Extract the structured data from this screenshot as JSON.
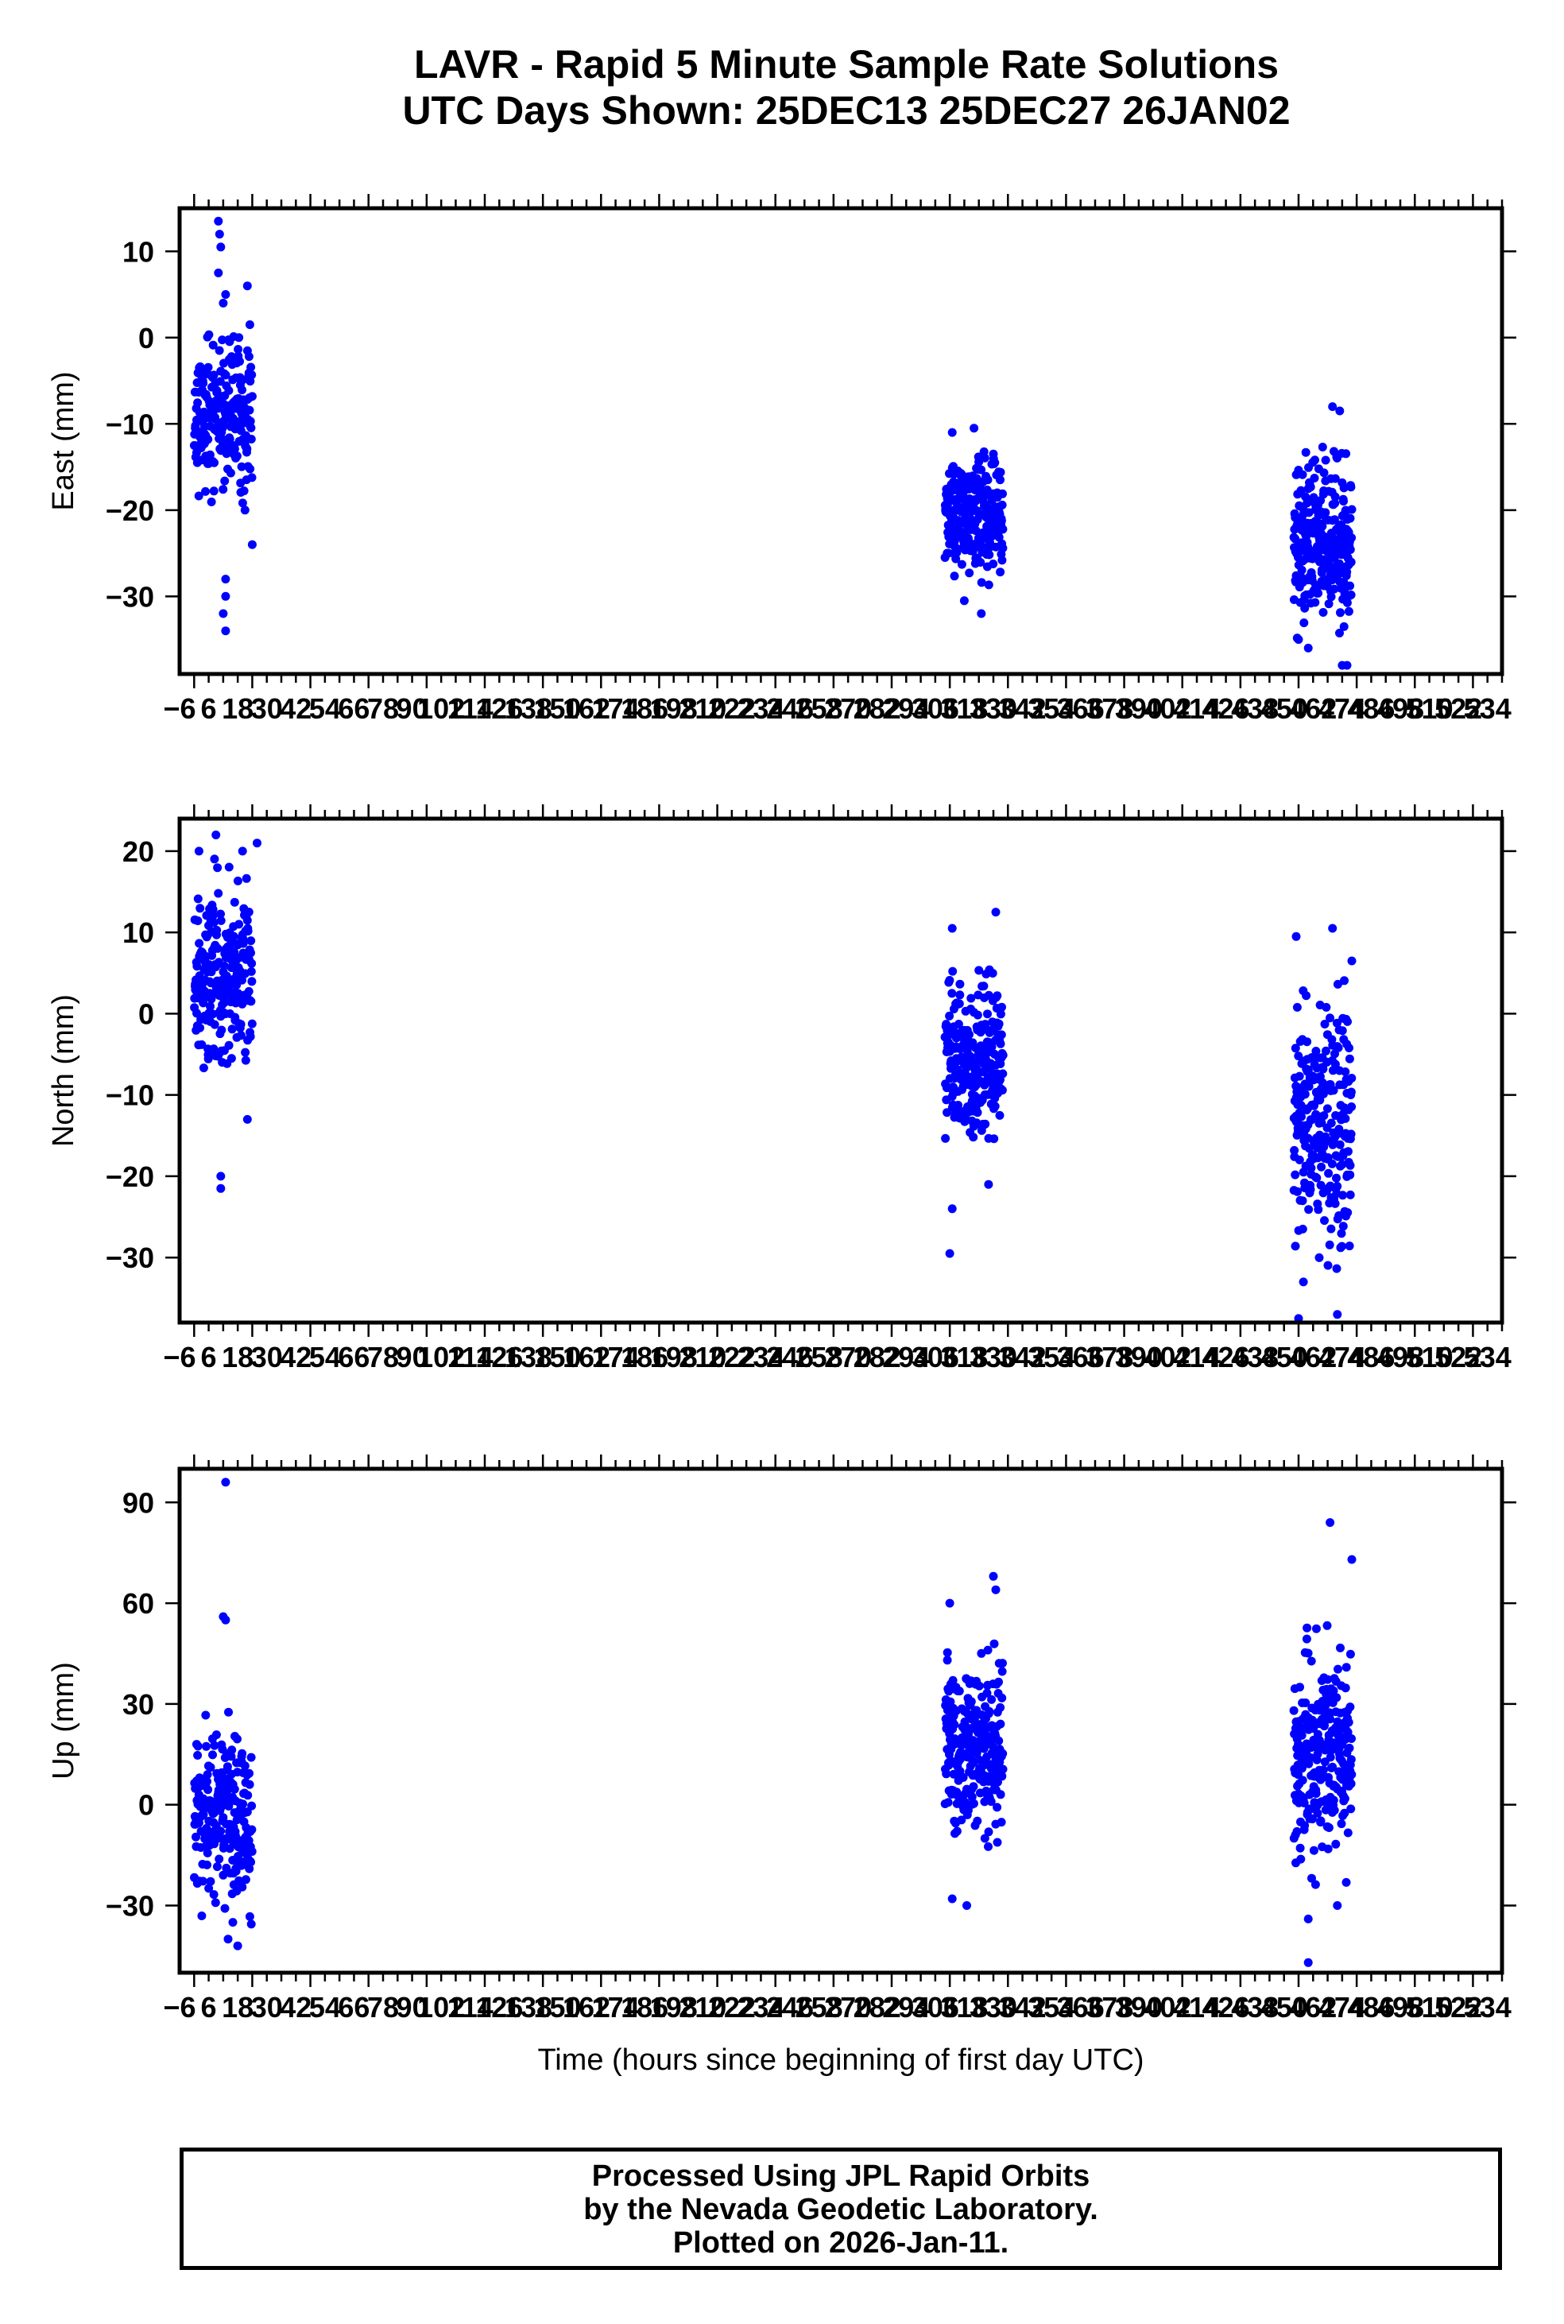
{
  "title": {
    "line1": "LAVR - Rapid 5 Minute Sample Rate Solutions",
    "line2": "UTC Days Shown:  25DEC13 25DEC27 26JAN02"
  },
  "footer": {
    "line1": "Processed Using JPL Rapid Orbits",
    "line2": "by the Nevada Geodetic Laboratory.",
    "line3": "Plotted on 2026-Jan-11."
  },
  "chart_data": [
    {
      "type": "scatter",
      "ylabel": "East (mm)",
      "xlabel": "",
      "xlim": [
        -6,
        540
      ],
      "ylim": [
        -39,
        15
      ],
      "yticks": [
        -30,
        -20,
        -10,
        0,
        10
      ],
      "color": "#0000ff",
      "clusters": [
        {
          "x_range": [
            0,
            24
          ],
          "y_mean": -9,
          "y_sd": 4,
          "n": 230,
          "seed": 11,
          "outliers": [
            [
              10,
              13.5
            ],
            [
              10.5,
              12
            ],
            [
              11,
              10.5
            ],
            [
              10,
              7.5
            ],
            [
              13,
              5
            ],
            [
              12,
              4
            ],
            [
              22,
              6
            ],
            [
              23,
              1.5
            ],
            [
              13,
              -28
            ],
            [
              13,
              -30
            ],
            [
              12,
              -32
            ],
            [
              13,
              -34
            ],
            [
              24,
              -24
            ],
            [
              21,
              -20
            ]
          ]
        },
        {
          "x_range": [
            310,
            334
          ],
          "y_mean": -20.5,
          "y_sd": 3.2,
          "n": 260,
          "seed": 23,
          "outliers": [
            [
              325,
              -32
            ],
            [
              318,
              -30.5
            ],
            [
              313,
              -11
            ],
            [
              322,
              -10.5
            ],
            [
              330,
              -13.5
            ]
          ]
        },
        {
          "x_range": [
            454,
            478
          ],
          "y_mean": -23.5,
          "y_sd": 4.5,
          "n": 260,
          "seed": 37,
          "outliers": [
            [
              470,
              -8
            ],
            [
              473,
              -8.5
            ],
            [
              476,
              -38
            ],
            [
              474,
              -38
            ],
            [
              460,
              -36
            ],
            [
              456,
              -35
            ]
          ]
        }
      ]
    },
    {
      "type": "scatter",
      "ylabel": "North (mm)",
      "xlabel": "",
      "xlim": [
        -6,
        540
      ],
      "ylim": [
        -38,
        24
      ],
      "yticks": [
        -30,
        -20,
        -10,
        0,
        10,
        20
      ],
      "color": "#0000ff",
      "clusters": [
        {
          "x_range": [
            0,
            24
          ],
          "y_mean": 5,
          "y_sd": 5.5,
          "n": 230,
          "seed": 41,
          "outliers": [
            [
              2,
              20
            ],
            [
              9,
              22
            ],
            [
              20,
              20
            ],
            [
              26,
              21
            ],
            [
              11,
              -20
            ],
            [
              11,
              -21.5
            ],
            [
              22,
              -13
            ]
          ]
        },
        {
          "x_range": [
            310,
            334
          ],
          "y_mean": -5.5,
          "y_sd": 4.5,
          "n": 260,
          "seed": 53,
          "outliers": [
            [
              312,
              -29.5
            ],
            [
              313,
              -24
            ],
            [
              331,
              12.5
            ],
            [
              313,
              10.5
            ],
            [
              328,
              -21
            ]
          ]
        },
        {
          "x_range": [
            454,
            478
          ],
          "y_mean": -13.5,
          "y_sd": 7,
          "n": 260,
          "seed": 67,
          "outliers": [
            [
              456,
              -37.5
            ],
            [
              472,
              -37
            ],
            [
              470,
              10.5
            ],
            [
              455,
              9.5
            ],
            [
              478,
              6.5
            ],
            [
              458,
              -33
            ]
          ]
        }
      ]
    },
    {
      "type": "scatter",
      "ylabel": "Up (mm)",
      "xlabel": "Time (hours since beginning of first day UTC)",
      "xlim": [
        -6,
        540
      ],
      "ylim": [
        -50,
        100
      ],
      "yticks": [
        -30,
        0,
        30,
        60,
        90
      ],
      "color": "#0000ff",
      "clusters": [
        {
          "x_range": [
            0,
            24
          ],
          "y_mean": -2,
          "y_sd": 13,
          "n": 230,
          "seed": 71,
          "outliers": [
            [
              13,
              96
            ],
            [
              12,
              56
            ],
            [
              13,
              55
            ],
            [
              14,
              -40
            ],
            [
              18,
              -42
            ],
            [
              16,
              -35
            ]
          ]
        },
        {
          "x_range": [
            310,
            334
          ],
          "y_mean": 18,
          "y_sd": 12,
          "n": 260,
          "seed": 83,
          "outliers": [
            [
              312,
              60
            ],
            [
              330,
              68
            ],
            [
              331,
              64
            ],
            [
              319,
              -30
            ],
            [
              313,
              -28
            ]
          ]
        },
        {
          "x_range": [
            454,
            478
          ],
          "y_mean": 14,
          "y_sd": 16,
          "n": 260,
          "seed": 97,
          "outliers": [
            [
              469,
              84
            ],
            [
              478,
              73
            ],
            [
              460,
              -47
            ],
            [
              460,
              -34
            ],
            [
              472,
              -30
            ]
          ]
        }
      ]
    }
  ]
}
